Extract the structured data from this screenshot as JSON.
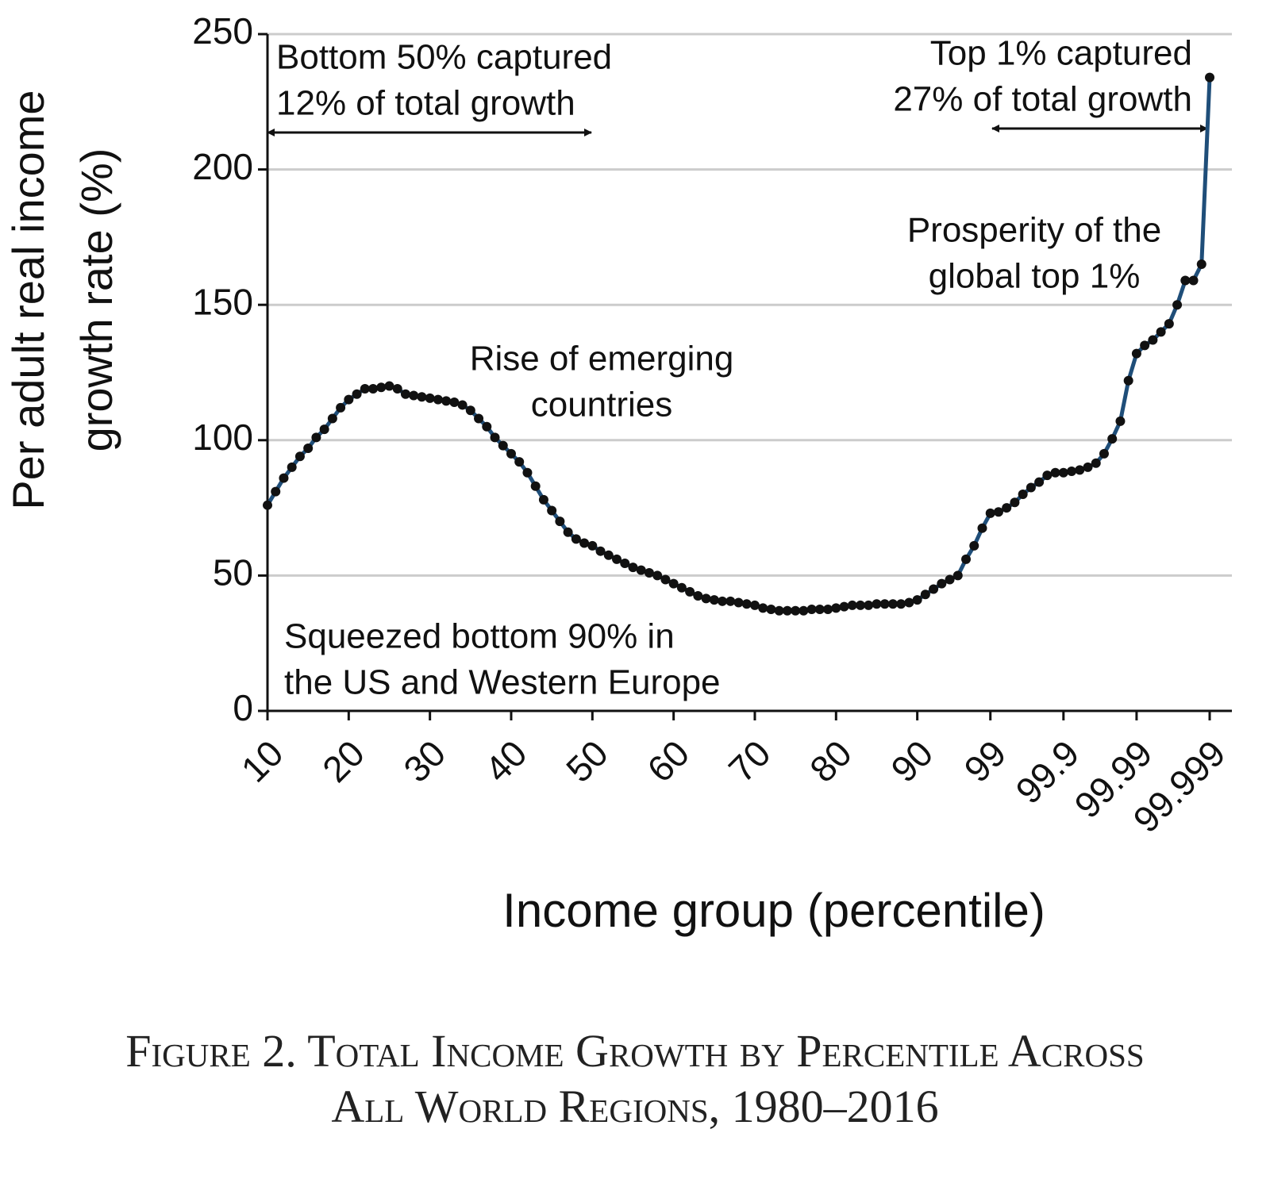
{
  "chart_data": {
    "type": "line",
    "y_label": [
      "Per adult real income",
      "growth rate (%)"
    ],
    "x_label": "Income group (percentile)",
    "categories": [
      "10",
      null,
      null,
      null,
      null,
      null,
      null,
      null,
      null,
      null,
      "20",
      null,
      null,
      null,
      null,
      null,
      null,
      null,
      null,
      null,
      "30",
      null,
      null,
      null,
      null,
      null,
      null,
      null,
      null,
      null,
      "40",
      null,
      null,
      null,
      null,
      null,
      null,
      null,
      null,
      null,
      "50",
      null,
      null,
      null,
      null,
      null,
      null,
      null,
      null,
      null,
      "60",
      null,
      null,
      null,
      null,
      null,
      null,
      null,
      null,
      null,
      "70",
      null,
      null,
      null,
      null,
      null,
      null,
      null,
      null,
      null,
      "80",
      null,
      null,
      null,
      null,
      null,
      null,
      null,
      null,
      null,
      "90",
      null,
      null,
      null,
      null,
      null,
      null,
      null,
      null,
      "99",
      null,
      null,
      null,
      null,
      null,
      null,
      null,
      null,
      "99.9",
      null,
      null,
      null,
      null,
      null,
      null,
      null,
      null,
      "99.99",
      null,
      null,
      null,
      null,
      null,
      null,
      null,
      null,
      "99.999"
    ],
    "values": [
      76,
      81,
      86,
      90,
      94,
      97,
      101,
      104,
      108,
      112,
      115,
      117,
      119,
      119,
      119.5,
      120,
      119,
      117,
      116.5,
      116,
      115.5,
      115,
      114.5,
      114,
      113,
      111,
      108,
      105,
      101,
      98,
      95,
      92,
      88,
      83,
      78,
      74,
      70,
      66,
      63.5,
      62,
      61,
      59,
      57.5,
      56,
      54.5,
      53,
      52,
      51,
      50,
      48.5,
      47,
      45.5,
      44,
      42.5,
      41.5,
      41,
      40.5,
      40.5,
      40,
      39.5,
      39,
      38,
      37.5,
      37,
      37,
      37,
      37,
      37.5,
      37.5,
      37.5,
      38,
      38.5,
      39,
      39,
      39,
      39.5,
      39.5,
      39.5,
      39.5,
      40,
      41,
      43,
      45,
      47,
      48.5,
      50,
      56,
      61,
      67.5,
      73,
      73.5,
      75,
      77,
      80,
      82.5,
      84.5,
      87,
      88,
      88,
      88.5,
      89,
      90,
      91.5,
      95,
      100.5,
      107,
      122,
      132,
      135,
      137,
      140,
      143,
      150,
      159,
      159,
      165,
      234
    ],
    "color": "#1f4e79",
    "marker_color": "#111111",
    "ylim": [
      0,
      250
    ],
    "yticks": [
      0,
      50,
      100,
      150,
      200,
      250
    ],
    "grid": true,
    "annotations": [
      {
        "text": [
          "Bottom 50% captured",
          "12% of total growth"
        ]
      },
      {
        "text": [
          "Top 1% captured",
          "27% of total growth"
        ]
      },
      {
        "text": [
          "Prosperity of the",
          "global top 1%"
        ]
      },
      {
        "text": [
          "Rise of emerging",
          "countries"
        ]
      },
      {
        "text": [
          "Squeezed bottom 90% in",
          "the US and Western Europe"
        ]
      }
    ]
  },
  "caption": [
    "Figure 2. Total Income Growth by Percentile Across",
    "All World Regions, 1980–2016"
  ]
}
